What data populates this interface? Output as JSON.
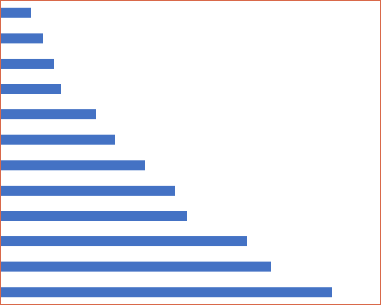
{
  "chart_data": {
    "type": "barh",
    "categories": [
      null,
      null,
      null,
      null,
      null,
      null,
      null,
      null,
      null,
      null,
      null,
      null
    ],
    "values": [
      41,
      58,
      74,
      83,
      133,
      159,
      201,
      243,
      260,
      344,
      378,
      463
    ],
    "color": "#4472c4",
    "xlim": [
      0,
      528
    ]
  }
}
